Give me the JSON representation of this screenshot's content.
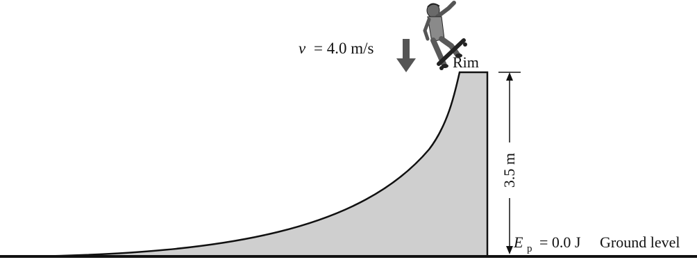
{
  "diagram": {
    "velocity": {
      "symbol": "v",
      "equals": "= 4.0 m/s"
    },
    "rim_label": "Rim",
    "height_label": "3.5 m",
    "potential_energy": {
      "symbol": "E",
      "subscript": "p",
      "equals": "= 0.0 J"
    },
    "ground_label": "Ground level",
    "colors": {
      "ramp_fill": "#cfcfcf",
      "line": "#111111",
      "arrow": "#555555"
    },
    "icons": {
      "skateboarder": "skateboarder-figure-icon",
      "velocity_arrow": "down-arrow-icon"
    }
  }
}
